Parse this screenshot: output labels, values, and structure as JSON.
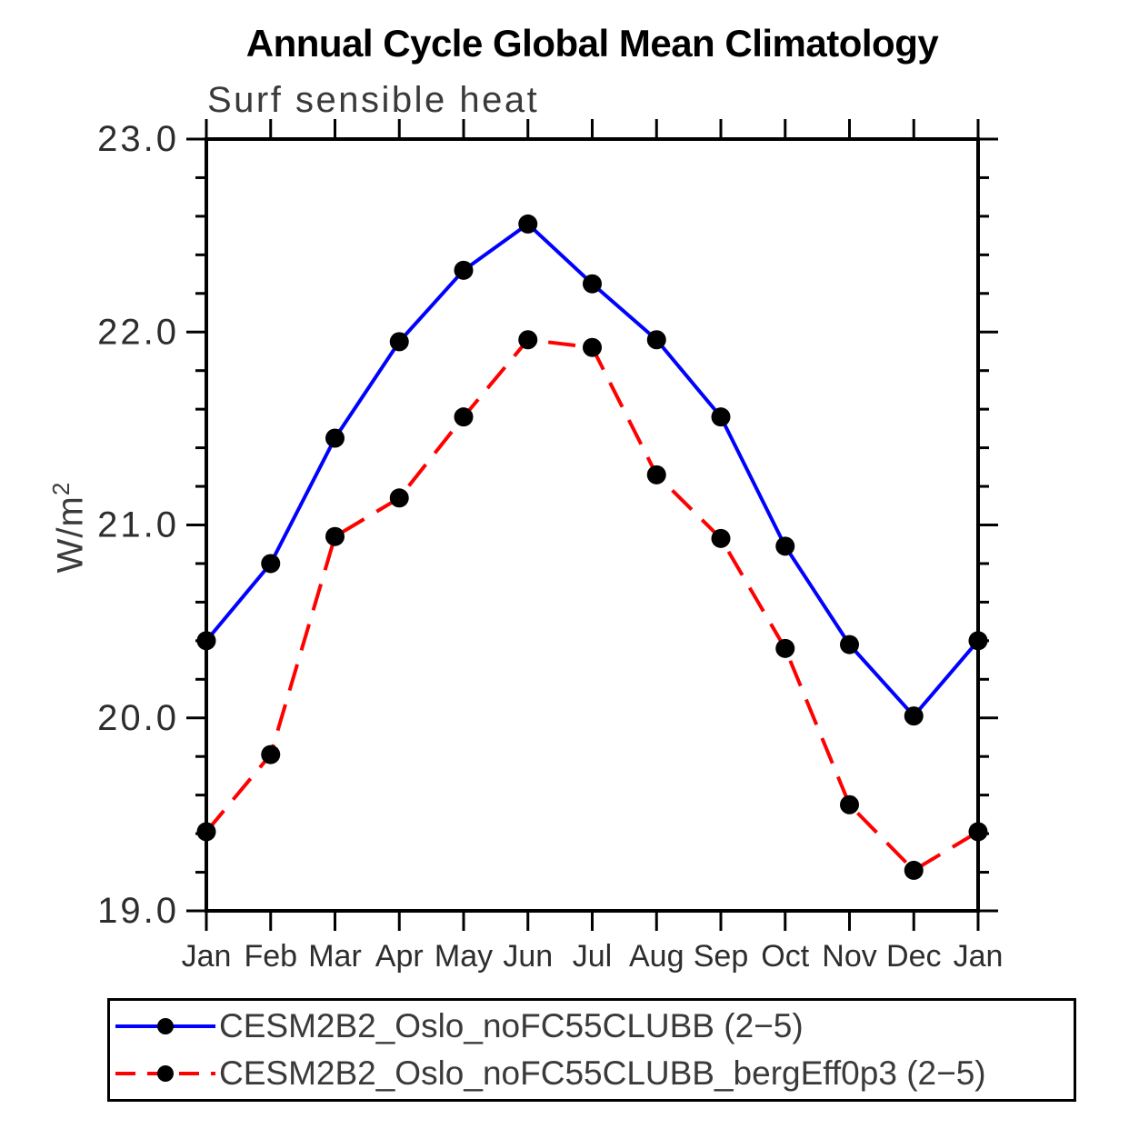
{
  "title": "Annual Cycle Global Mean Climatology",
  "subtitle": "Surf sensible heat",
  "ylabel": {
    "base": "W/m",
    "exponent": "2"
  },
  "chart_data": {
    "type": "line",
    "x_tick_labels": [
      "Jan",
      "Feb",
      "Mar",
      "Apr",
      "May",
      "Jun",
      "Jul",
      "Aug",
      "Sep",
      "Oct",
      "Nov",
      "Dec",
      "Jan"
    ],
    "y_tick_labels": [
      "23.0",
      "22.0",
      "21.0",
      "20.0",
      "19.0"
    ],
    "ylim": [
      19.0,
      23.0
    ],
    "y_major_step": 1.0,
    "y_minor_step": 0.2,
    "grid": false,
    "legend_position": "bottom-left-box",
    "axis_color": "#000000",
    "marker_color": "#000000",
    "series": [
      {
        "name": "CESM2B2_Oslo_noFC55CLUBB (2−5)",
        "color": "#0000ff",
        "line_style": "solid",
        "marker": "filled-circle",
        "values": [
          20.4,
          20.8,
          21.45,
          21.95,
          22.32,
          22.56,
          22.25,
          21.96,
          21.56,
          20.89,
          20.38,
          20.01,
          20.4
        ]
      },
      {
        "name": "CESM2B2_Oslo_noFC55CLUBB_bergEff0p3 (2−5)",
        "color": "#ff0000",
        "line_style": "dashed",
        "marker": "filled-circle",
        "values": [
          19.41,
          19.81,
          20.94,
          21.14,
          21.56,
          21.96,
          21.92,
          21.26,
          20.93,
          20.36,
          19.55,
          19.21,
          19.41
        ]
      }
    ]
  }
}
